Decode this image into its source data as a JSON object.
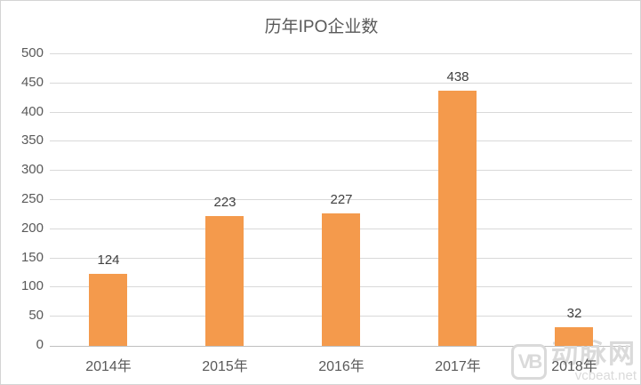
{
  "title": "历年IPO企业数",
  "watermark": {
    "logo": "VB",
    "name": "动脉网",
    "domain": "vcbeat.net"
  },
  "chart_data": {
    "type": "bar",
    "title": "历年IPO企业数",
    "categories": [
      "2014年",
      "2015年",
      "2016年",
      "2017年",
      "2018年"
    ],
    "values": [
      124,
      223,
      227,
      438,
      32
    ],
    "xlabel": "",
    "ylabel": "",
    "ylim": [
      0,
      500
    ],
    "ytick_step": 50,
    "grid": true,
    "legend": "none",
    "bar_color": "#f49a4c",
    "gridline_color": "#d9d9d9",
    "axis_line_color": "#bfbfbf",
    "data_label_color": "#404040",
    "tick_label_color": "#595959",
    "title_color": "#595959"
  }
}
